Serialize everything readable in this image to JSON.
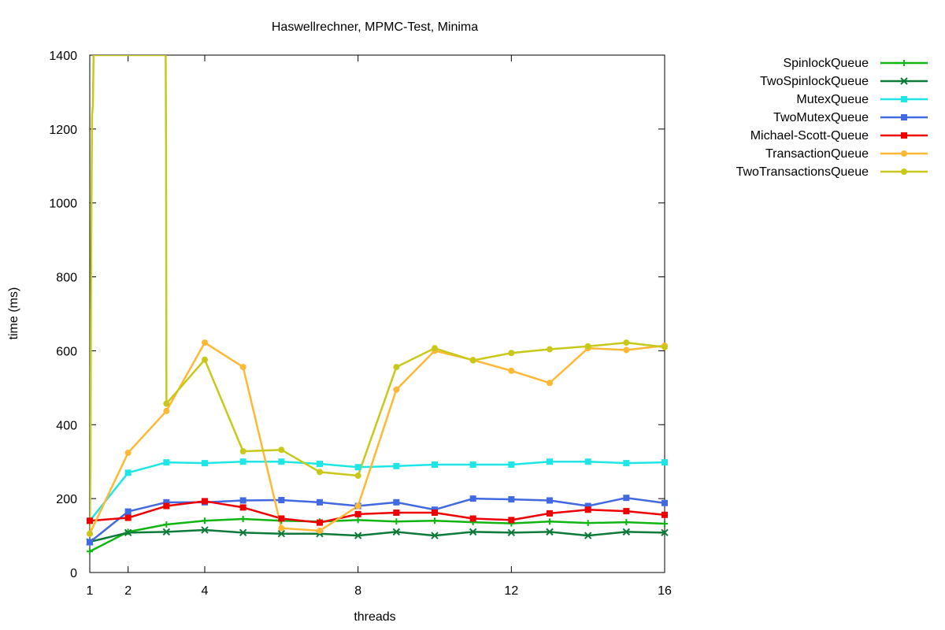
{
  "chart_data": {
    "type": "line",
    "title": "Haswellrechner, MPMC-Test, Minima",
    "xlabel": "threads",
    "ylabel": "time (ms)",
    "xlim": [
      1,
      16
    ],
    "ylim": [
      0,
      1400
    ],
    "xticks": [
      1,
      2,
      4,
      8,
      12,
      16
    ],
    "yticks": [
      0,
      200,
      400,
      600,
      800,
      1000,
      1200,
      1400
    ],
    "grid": false,
    "legend_position": "outside-top-right",
    "series": [
      {
        "name": "SpinlockQueue",
        "color": "#11b511",
        "marker": "plus",
        "x": [
          1,
          2,
          3,
          4,
          5,
          6,
          7,
          8,
          9,
          10,
          11,
          12,
          13,
          14,
          15,
          16
        ],
        "y": [
          57,
          110,
          130,
          140,
          145,
          140,
          138,
          142,
          138,
          140,
          136,
          133,
          138,
          134,
          136,
          132
        ]
      },
      {
        "name": "TwoSpinlockQueue",
        "color": "#0d7a3a",
        "marker": "cross",
        "x": [
          1,
          2,
          3,
          4,
          5,
          6,
          7,
          8,
          9,
          10,
          11,
          12,
          13,
          14,
          15,
          16
        ],
        "y": [
          83,
          108,
          110,
          115,
          108,
          105,
          105,
          100,
          110,
          100,
          110,
          108,
          110,
          100,
          110,
          108
        ]
      },
      {
        "name": "MutexQueue",
        "color": "#1ee6e6",
        "marker": "square",
        "x": [
          1,
          2,
          3,
          4,
          5,
          6,
          7,
          8,
          9,
          10,
          11,
          12,
          13,
          14,
          15,
          16
        ],
        "y": [
          140,
          270,
          298,
          296,
          300,
          300,
          294,
          285,
          288,
          292,
          292,
          292,
          300,
          300,
          296,
          298
        ]
      },
      {
        "name": "TwoMutexQueue",
        "color": "#4169e1",
        "marker": "square",
        "x": [
          1,
          2,
          3,
          4,
          5,
          6,
          7,
          8,
          9,
          10,
          11,
          12,
          13,
          14,
          15,
          16
        ],
        "y": [
          82,
          165,
          190,
          190,
          195,
          196,
          190,
          180,
          190,
          170,
          200,
          198,
          195,
          180,
          202,
          188
        ]
      },
      {
        "name": "Michael-Scott-Queue",
        "color": "#ee0000",
        "marker": "square",
        "x": [
          1,
          2,
          3,
          4,
          5,
          6,
          7,
          8,
          9,
          10,
          11,
          12,
          13,
          14,
          15,
          16
        ],
        "y": [
          140,
          148,
          180,
          193,
          176,
          146,
          135,
          158,
          162,
          162,
          146,
          142,
          160,
          170,
          166,
          156
        ]
      },
      {
        "name": "TransactionQueue",
        "color": "#ffb833",
        "marker": "circle",
        "x": [
          1,
          2,
          3,
          4,
          5,
          6,
          7,
          8,
          9,
          10,
          11,
          12,
          13,
          14,
          15,
          16
        ],
        "y": [
          105,
          324,
          437,
          622,
          556,
          120,
          113,
          180,
          495,
          600,
          575,
          546,
          513,
          607,
          602,
          614
        ]
      },
      {
        "name": "TwoTransactionsQueue",
        "color": "#c8c81a",
        "marker": "circle",
        "x": [
          1,
          1.02,
          1.03,
          1.04,
          1.05,
          1.06,
          1.08,
          1.1,
          1.15,
          2.98,
          2.99,
          3,
          4,
          5,
          6,
          7,
          8,
          9,
          10,
          11,
          12,
          13,
          14,
          15,
          16
        ],
        "y": [
          105,
          300,
          700,
          920,
          1100,
          1240,
          1260,
          1400,
          1400,
          1400,
          1170,
          457,
          576,
          328,
          332,
          272,
          262,
          556,
          607,
          574,
          594,
          604,
          612,
          622,
          610
        ]
      }
    ]
  }
}
